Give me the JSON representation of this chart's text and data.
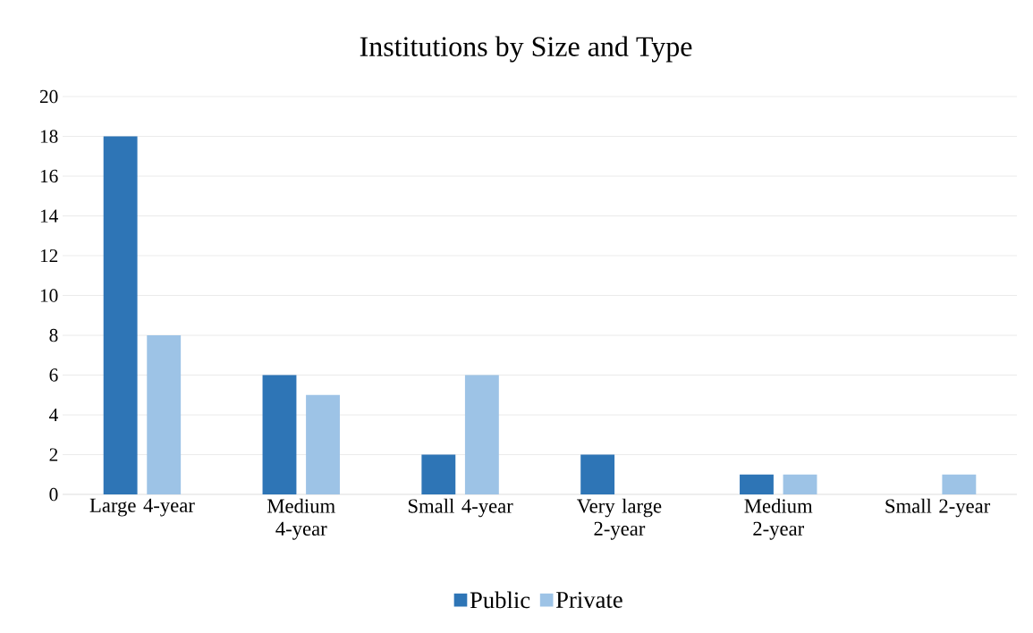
{
  "chart_data": {
    "type": "bar",
    "title": "Institutions by Size and Type",
    "categories": [
      "Large 4-year",
      "Medium 4-year",
      "Small 4-year",
      "Very large 2-year",
      "Medium 2-year",
      "Small 2-year"
    ],
    "series": [
      {
        "name": "Public",
        "color": "#2e75b6",
        "values": [
          18,
          6,
          2,
          2,
          1,
          0
        ]
      },
      {
        "name": "Private",
        "color": "#9dc3e6",
        "values": [
          8,
          5,
          6,
          0,
          1,
          1
        ]
      }
    ],
    "ylim": [
      0,
      20
    ],
    "yticks": [
      0,
      2,
      4,
      6,
      8,
      10,
      12,
      14,
      16,
      18,
      20
    ],
    "grid": "y",
    "legend": "bottom"
  }
}
